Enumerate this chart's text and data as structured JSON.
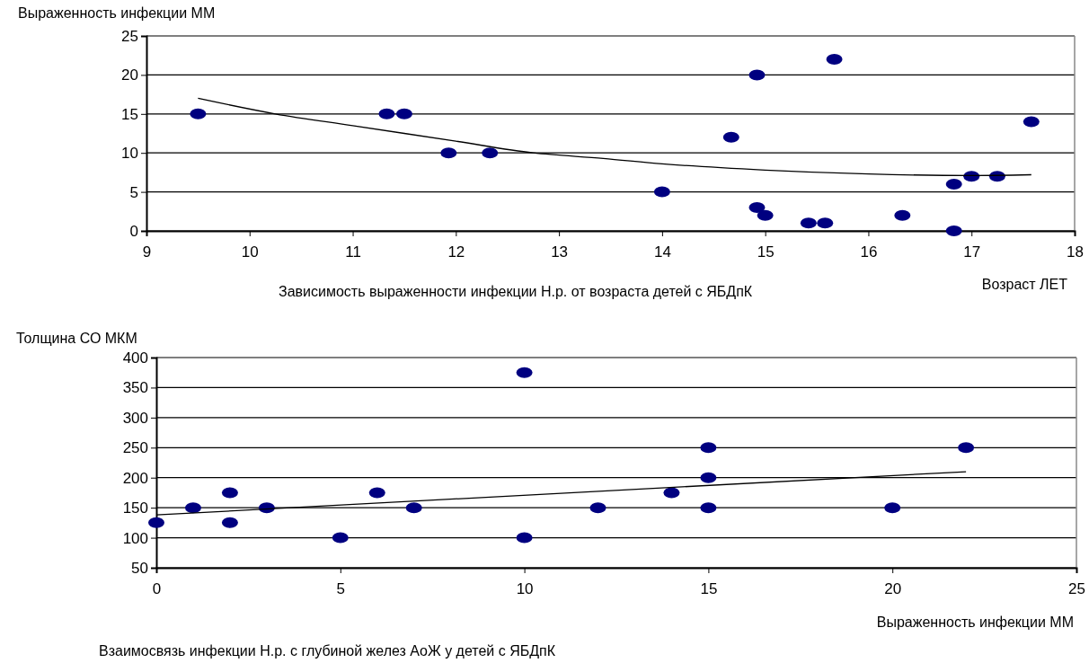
{
  "chart_data": [
    {
      "type": "scatter",
      "ylabel": "Выраженность инфекции   ММ",
      "xlabel": "Возраст   ЛЕТ",
      "annotations": [
        "Зависимость  выраженности  инфекции Н.р. от возраста детей с ЯБДпК"
      ],
      "xlim": [
        9,
        18
      ],
      "xticks": [
        9,
        10,
        11,
        12,
        13,
        14,
        15,
        16,
        17,
        18
      ],
      "ylim": [
        0,
        25
      ],
      "yticks": [
        0,
        5,
        10,
        15,
        20,
        25
      ],
      "grid": "y",
      "marker": "circle",
      "series": [
        {
          "color": "#000080",
          "x": [
            9.5,
            11.33,
            11.5,
            11.93,
            12.33,
            14.0,
            14.67,
            14.92,
            15.67,
            14.92,
            15.0,
            15.42,
            15.58,
            16.33,
            16.83,
            16.83,
            17.0,
            17.25,
            17.58
          ],
          "values": [
            15,
            15,
            15,
            10,
            10,
            5,
            12,
            20,
            22,
            3,
            2,
            1,
            1,
            2,
            6,
            0,
            7,
            7,
            14
          ]
        },
        {
          "type": "line",
          "color": "#000000",
          "marker": "none",
          "line_style": "solid",
          "x": [
            9.5,
            10.25,
            11,
            12,
            12.75,
            13.43,
            14,
            15,
            16,
            17,
            17.58
          ],
          "values": [
            17,
            15,
            13.5,
            11.5,
            10,
            9.3,
            8.6,
            7.8,
            7.3,
            7.1,
            7.2
          ]
        }
      ]
    },
    {
      "type": "scatter",
      "ylabel": "Толщина СО   МКМ",
      "xlabel": "Выраженность инфекции   ММ",
      "annotations": [
        "Взаимосвязь инфекции Н.р. с глубиной желез АоЖ у детей с ЯБДпК"
      ],
      "xlim": [
        0,
        25
      ],
      "xticks": [
        0,
        5,
        10,
        15,
        20,
        25
      ],
      "ylim": [
        50,
        400
      ],
      "yticks": [
        50,
        100,
        150,
        200,
        250,
        300,
        350,
        400
      ],
      "grid": "y",
      "marker": "circle",
      "series": [
        {
          "color": "#000080",
          "x": [
            0,
            1,
            2,
            2,
            3,
            5,
            6,
            7,
            10,
            10,
            12,
            14,
            15,
            15,
            15,
            20,
            22
          ],
          "values": [
            125,
            150,
            175,
            125,
            150,
            100,
            175,
            150,
            375,
            100,
            150,
            175,
            250,
            200,
            150,
            150,
            250
          ]
        },
        {
          "type": "line",
          "color": "#000000",
          "marker": "none",
          "line_style": "solid",
          "x": [
            0,
            22
          ],
          "values": [
            138,
            210
          ]
        }
      ]
    }
  ]
}
